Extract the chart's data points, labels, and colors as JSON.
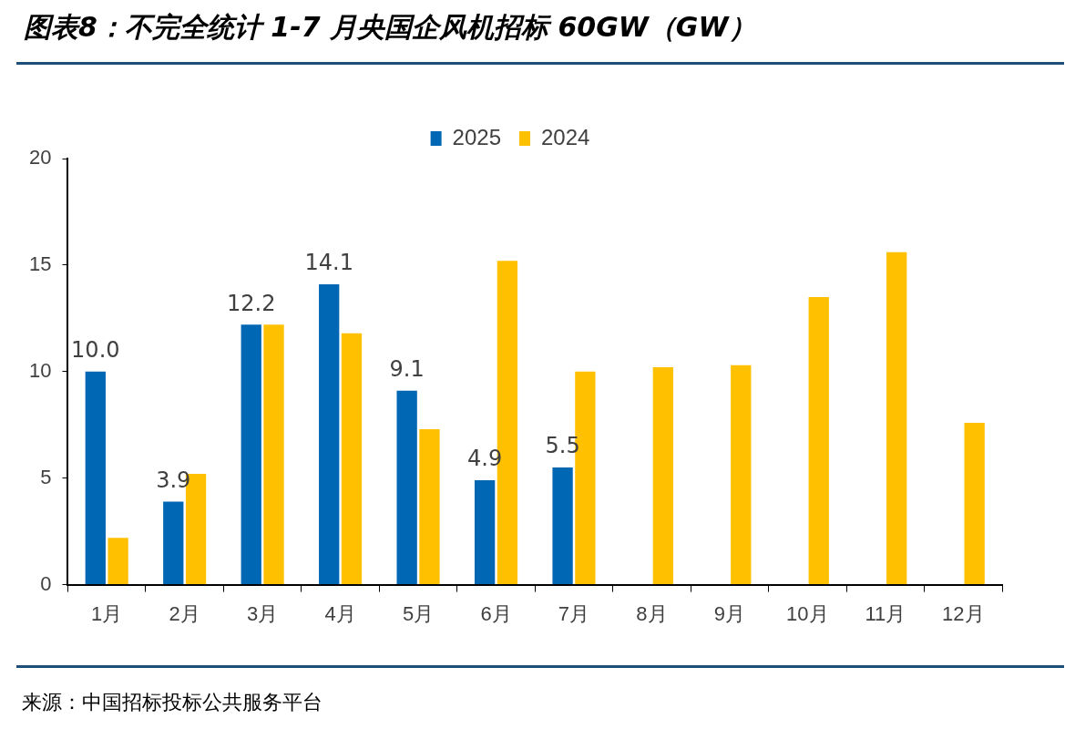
{
  "chart_data": {
    "type": "bar",
    "title": "图表8：不完全统计 1-7 月央国企风机招标 60GW（GW）",
    "categories": [
      "1月",
      "2月",
      "3月",
      "4月",
      "5月",
      "6月",
      "7月",
      "8月",
      "9月",
      "10月",
      "11月",
      "12月"
    ],
    "series": [
      {
        "name": "2025",
        "color": "#0067b4",
        "values": [
          10.0,
          3.9,
          12.2,
          14.1,
          9.1,
          4.9,
          5.5,
          null,
          null,
          null,
          null,
          null
        ],
        "value_labels": [
          "10.0",
          "3.9",
          "12.2",
          "14.1",
          "9.1",
          "4.9",
          "5.5",
          null,
          null,
          null,
          null,
          null
        ]
      },
      {
        "name": "2024",
        "color": "#ffc000",
        "values": [
          2.2,
          5.2,
          12.2,
          11.8,
          7.3,
          15.2,
          10.0,
          10.2,
          10.3,
          13.5,
          15.6,
          7.6
        ]
      }
    ],
    "ylim": [
      0,
      20
    ],
    "yticks": [
      0,
      5,
      10,
      15,
      20
    ],
    "grid": false,
    "legend": "top",
    "annotations": [
      "来源：中国招标投标公共服务平台"
    ]
  }
}
